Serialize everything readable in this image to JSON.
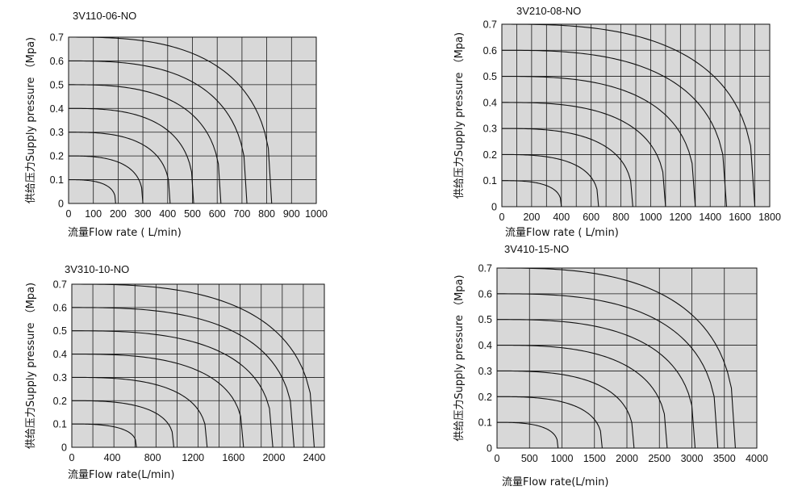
{
  "chart_data": [
    {
      "type": "line",
      "title": "3V110-06-NO",
      "xlabel": "流量Flow rate ( L/min)",
      "ylabel": "供给压力Supply pressure （Mpa)",
      "xlim": [
        0,
        1000
      ],
      "ylim": [
        0,
        0.7
      ],
      "xticks": [
        "0",
        "100",
        "200",
        "300",
        "400",
        "500",
        "600",
        "700",
        "800",
        "900",
        "1000"
      ],
      "yticks": [
        "0",
        "0.1",
        "0.2",
        "0.3",
        "0.4",
        "0.5",
        "0.6",
        "0.7"
      ],
      "x_gridlines": 10,
      "y_gridlines": 7,
      "series": [
        {
          "start_pressure": 0.1,
          "max_flow": 190
        },
        {
          "start_pressure": 0.2,
          "max_flow": 300
        },
        {
          "start_pressure": 0.3,
          "max_flow": 410
        },
        {
          "start_pressure": 0.4,
          "max_flow": 505
        },
        {
          "start_pressure": 0.5,
          "max_flow": 615
        },
        {
          "start_pressure": 0.6,
          "max_flow": 720
        },
        {
          "start_pressure": 0.7,
          "max_flow": 820
        }
      ]
    },
    {
      "type": "line",
      "title": "3V210-08-NO",
      "xlabel": "流量Flow rate ( L/min)",
      "ylabel": "供给压力Supply pressure （Mpa)",
      "xlim": [
        0,
        1800
      ],
      "ylim": [
        0,
        0.7
      ],
      "xticks": [
        "0",
        "200",
        "400",
        "600",
        "800",
        "1000",
        "1200",
        "1400",
        "1600",
        "1800"
      ],
      "yticks": [
        "0",
        "0.1",
        "0.2",
        "0.3",
        "0.4",
        "0.5",
        "0.6",
        "0.7"
      ],
      "x_gridlines": 18,
      "y_gridlines": 7,
      "series": [
        {
          "start_pressure": 0.1,
          "max_flow": 400
        },
        {
          "start_pressure": 0.2,
          "max_flow": 650
        },
        {
          "start_pressure": 0.3,
          "max_flow": 880
        },
        {
          "start_pressure": 0.4,
          "max_flow": 1100
        },
        {
          "start_pressure": 0.5,
          "max_flow": 1300
        },
        {
          "start_pressure": 0.6,
          "max_flow": 1510
        },
        {
          "start_pressure": 0.7,
          "max_flow": 1700
        }
      ]
    },
    {
      "type": "line",
      "title": "3V310-10-NO",
      "xlabel": "流量Flow rate(L/min)",
      "ylabel": "供给压力Supply pressure （Mpa)",
      "xlim": [
        0,
        2500
      ],
      "ylim": [
        0,
        0.7
      ],
      "xticks": [
        "0",
        "400",
        "800",
        "1200",
        "1600",
        "2000",
        "2400"
      ],
      "yticks": [
        "0",
        "0.1",
        "0.2",
        "0.3",
        "0.4",
        "0.5",
        "0.6",
        "0.7"
      ],
      "x_gridlines": 12,
      "y_gridlines": 7,
      "series": [
        {
          "start_pressure": 0.1,
          "max_flow": 640
        },
        {
          "start_pressure": 0.2,
          "max_flow": 1010
        },
        {
          "start_pressure": 0.3,
          "max_flow": 1340
        },
        {
          "start_pressure": 0.4,
          "max_flow": 1700
        },
        {
          "start_pressure": 0.5,
          "max_flow": 1990
        },
        {
          "start_pressure": 0.6,
          "max_flow": 2200
        },
        {
          "start_pressure": 0.7,
          "max_flow": 2400
        }
      ]
    },
    {
      "type": "line",
      "title": "3V410-15-NO",
      "xlabel": "流量Flow rate(L/min)",
      "ylabel": "供给压力Supply pressure （Mpa)",
      "xlim": [
        0,
        4000
      ],
      "ylim": [
        0,
        0.7
      ],
      "xticks": [
        "0",
        "500",
        "1000",
        "1500",
        "2000",
        "2500",
        "3000",
        "3500",
        "4000"
      ],
      "yticks": [
        "0",
        "0.1",
        "0.2",
        "0.3",
        "0.4",
        "0.5",
        "0.6",
        "0.7"
      ],
      "x_gridlines": 8,
      "y_gridlines": 7,
      "series": [
        {
          "start_pressure": 0.1,
          "max_flow": 940
        },
        {
          "start_pressure": 0.2,
          "max_flow": 1620
        },
        {
          "start_pressure": 0.3,
          "max_flow": 2110
        },
        {
          "start_pressure": 0.4,
          "max_flow": 2620
        },
        {
          "start_pressure": 0.5,
          "max_flow": 3050
        },
        {
          "start_pressure": 0.6,
          "max_flow": 3400
        },
        {
          "start_pressure": 0.7,
          "max_flow": 3670
        }
      ]
    }
  ]
}
